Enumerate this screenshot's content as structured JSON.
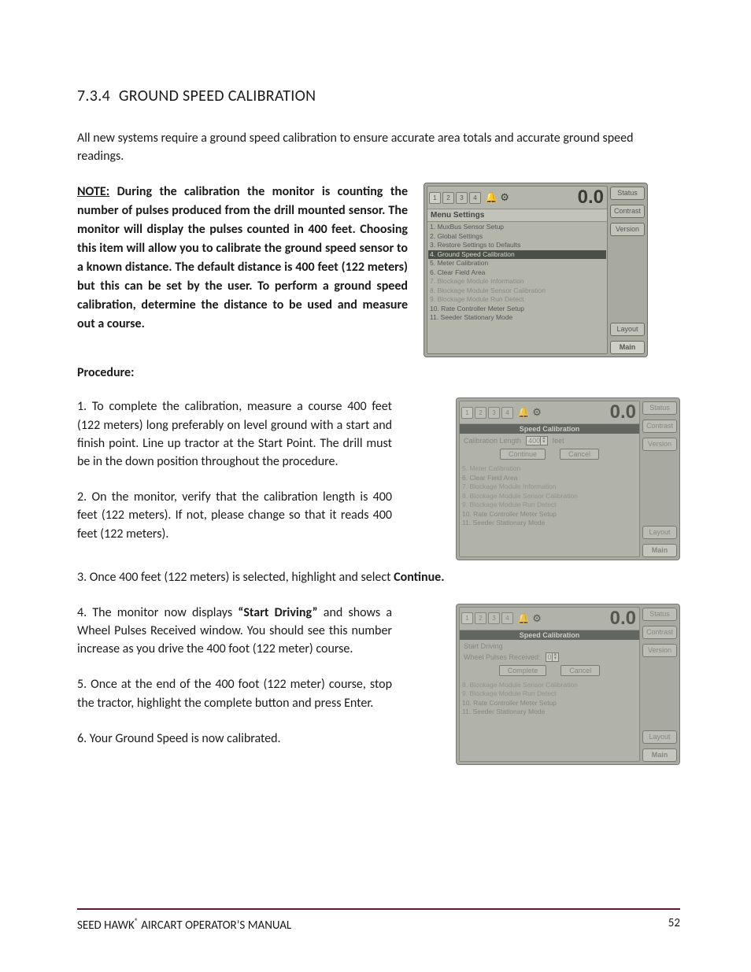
{
  "heading": {
    "number": "7.3.4",
    "title": "GROUND SPEED CALIBRATION"
  },
  "intro": "All new systems require a ground speed calibration to ensure accurate area totals and accurate ground speed readings.",
  "note": {
    "label": "NOTE:",
    "text": " During the calibration the monitor is counting the number of pulses produced from the drill mounted sensor.  The monitor will display the pulses counted in 400 feet. Choosing this item will allow you to calibrate the ground speed sensor to a known distance. The default distance is 400 feet (122 meters) but this can be set by the user. To perform a ground speed calibration, determine the distance to be used and measure out a course."
  },
  "procedure_label": "Procedure:",
  "steps": {
    "s1": "1. To complete the calibration, measure a course 400 feet (122 meters) long preferably on level ground with a start and finish point.  Line up tractor at the Start Point.  The drill must be in the down position throughout the procedure.",
    "s2": "2. On the monitor, verify that the calibration length is 400 feet (122 meters).  If not, please change so that it reads 400 feet (122 meters).",
    "s3_pre": "3. Once 400 feet (122 meters) is selected, highlight and select ",
    "s3_bold": "Continue.",
    "s4_pre": "4. The monitor now displays ",
    "s4_bold": "“Start Driving”",
    "s4_post": " and shows a Wheel Pulses Received window.  You should see this number increase as you drive the 400 foot (122 meter) course.",
    "s5": "5. Once at the end of the 400 foot (122 meter) course, stop the tractor, highlight the complete button and press Enter.",
    "s6": "6. Your Ground Speed is now calibrated."
  },
  "monitor_common": {
    "tabs": [
      "1",
      "2",
      "3",
      "4"
    ],
    "speed": "0.0",
    "side_buttons": [
      "Status",
      "Contrast",
      "Version",
      "Layout",
      "Main"
    ]
  },
  "monitor1": {
    "title": "Menu Settings",
    "items": [
      {
        "t": "1. MuxBus Sensor Setup",
        "cls": ""
      },
      {
        "t": "2. Global Settings",
        "cls": ""
      },
      {
        "t": "3. Restore Settings to Defaults",
        "cls": ""
      },
      {
        "t": "4. Ground Speed Calibration",
        "cls": "hl"
      },
      {
        "t": "5. Meter Calibration",
        "cls": ""
      },
      {
        "t": "6. Clear Field Area",
        "cls": ""
      },
      {
        "t": "7. Blockage Module Information",
        "cls": "dis"
      },
      {
        "t": "8. Blockage Module Sensor Calibration",
        "cls": "dis"
      },
      {
        "t": "9. Blockage Module Run Detect",
        "cls": "dis"
      },
      {
        "t": "10. Rate Controller Meter Setup",
        "cls": ""
      },
      {
        "t": "11. Seeder Stationary Mode",
        "cls": ""
      }
    ]
  },
  "monitor2": {
    "dialog_title": "Speed Calibration",
    "length_label": "Calibration Length",
    "length_value": "400",
    "length_unit": "feet",
    "btn_continue": "Continue",
    "btn_cancel": "Cancel",
    "below": [
      {
        "t": "5. Meter Calibration",
        "cls": "dis"
      },
      {
        "t": "6. Clear Field Area",
        "cls": ""
      },
      {
        "t": "7. Blockage Module Information",
        "cls": "dis"
      },
      {
        "t": "8. Blockage Module Sensor Calibration",
        "cls": "dis"
      },
      {
        "t": "9. Blockage Module Run Detect",
        "cls": "dis"
      },
      {
        "t": "10. Rate Controller Meter Setup",
        "cls": ""
      },
      {
        "t": "11. Seeder Stationary Mode",
        "cls": ""
      }
    ]
  },
  "monitor3": {
    "dialog_title": "Speed Calibration",
    "start_label": "Start Driving",
    "pulses_label": "Wheel Pulses Received:",
    "pulses_value": "0",
    "btn_complete": "Complete",
    "btn_cancel": "Cancel",
    "below": [
      {
        "t": "8. Blockage Module Sensor Calibration",
        "cls": "dis"
      },
      {
        "t": "9. Blockage Module Run Detect",
        "cls": "dis"
      },
      {
        "t": "10. Rate Controller Meter Setup",
        "cls": ""
      },
      {
        "t": "11. Seeder Stationary Mode",
        "cls": ""
      }
    ]
  },
  "footer": {
    "left_pre": "SEED HAWK",
    "left_post": " AIRCART OPERATOR’S MANUAL",
    "page": "52",
    "rule_color": "#63192d"
  }
}
